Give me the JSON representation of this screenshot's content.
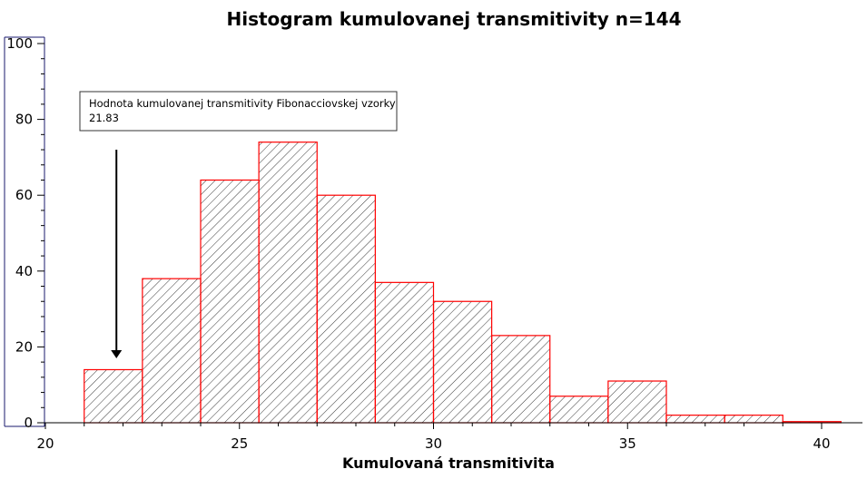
{
  "chart_data": {
    "type": "bar",
    "title": "Histogram kumulovanej transmitivity n=144",
    "xlabel": "Kumulovaná transmitivita",
    "ylabel": "",
    "xlim": [
      20,
      40.5
    ],
    "ylim": [
      0,
      100
    ],
    "x_ticks": [
      "20",
      "25",
      "30",
      "35",
      "40"
    ],
    "y_ticks": [
      "0",
      "20",
      "40",
      "60",
      "80",
      "100"
    ],
    "bins": [
      {
        "start": 21.0,
        "end": 22.5,
        "count": 14
      },
      {
        "start": 22.5,
        "end": 24.0,
        "count": 38
      },
      {
        "start": 24.0,
        "end": 25.5,
        "count": 64
      },
      {
        "start": 25.5,
        "end": 27.0,
        "count": 74
      },
      {
        "start": 27.0,
        "end": 28.5,
        "count": 60
      },
      {
        "start": 28.5,
        "end": 30.0,
        "count": 37
      },
      {
        "start": 30.0,
        "end": 31.5,
        "count": 32
      },
      {
        "start": 31.5,
        "end": 33.0,
        "count": 23
      },
      {
        "start": 33.0,
        "end": 34.5,
        "count": 7
      },
      {
        "start": 34.5,
        "end": 36.0,
        "count": 11
      },
      {
        "start": 36.0,
        "end": 37.5,
        "count": 2
      },
      {
        "start": 37.5,
        "end": 39.0,
        "count": 2
      },
      {
        "start": 39.0,
        "end": 40.5,
        "count": 0.3
      }
    ],
    "bar_color": "#ff0000",
    "annotation": {
      "text_line1": "Hodnota kumulovanej transmitivity Fibonacciovskej vzorky",
      "text_line2": "21.83",
      "arrow_x": 21.83,
      "arrow_from_y": 72,
      "arrow_to_y": 17
    },
    "grid": false
  }
}
